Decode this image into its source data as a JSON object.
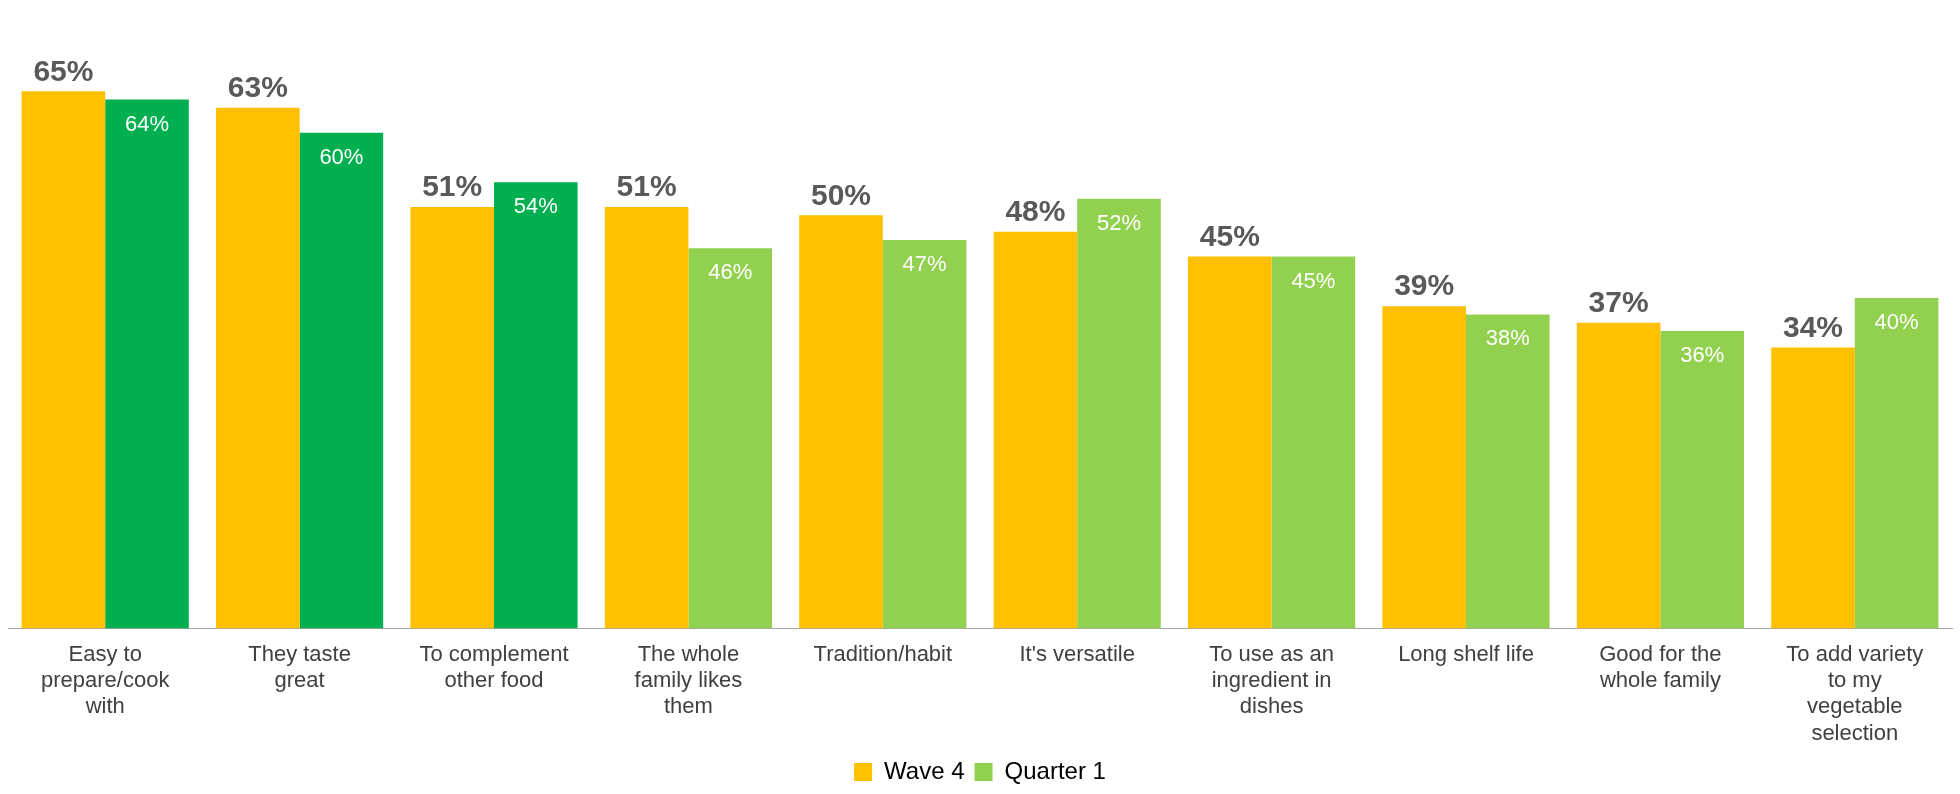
{
  "chart_data": {
    "type": "bar",
    "categories": [
      "Easy to prepare/cook with",
      "They taste great",
      "To complement other food",
      "The whole family likes them",
      "Tradition/habit",
      "It's versatile",
      "To use as an ingredient in dishes",
      "Long shelf life",
      "Good for the whole family",
      "To add variety to my vegetable selection"
    ],
    "series": [
      {
        "name": "Wave 4",
        "color": "#ffc000",
        "values": [
          65,
          63,
          51,
          51,
          50,
          48,
          45,
          39,
          37,
          34
        ],
        "value_labels": [
          "65%",
          "63%",
          "51%",
          "51%",
          "50%",
          "48%",
          "45%",
          "39%",
          "37%",
          "34%"
        ]
      },
      {
        "name": "Quarter 1",
        "color": "#92d050",
        "colors": [
          "#00b050",
          "#00b050",
          "#00b050",
          "#92d050",
          "#92d050",
          "#92d050",
          "#92d050",
          "#92d050",
          "#92d050",
          "#92d050"
        ],
        "values": [
          64,
          60,
          54,
          46,
          47,
          52,
          45,
          38,
          36,
          40
        ],
        "value_labels": [
          "64%",
          "60%",
          "54%",
          "46%",
          "47%",
          "52%",
          "45%",
          "38%",
          "36%",
          "40%"
        ]
      }
    ],
    "grid": false,
    "legend": "bottom"
  }
}
